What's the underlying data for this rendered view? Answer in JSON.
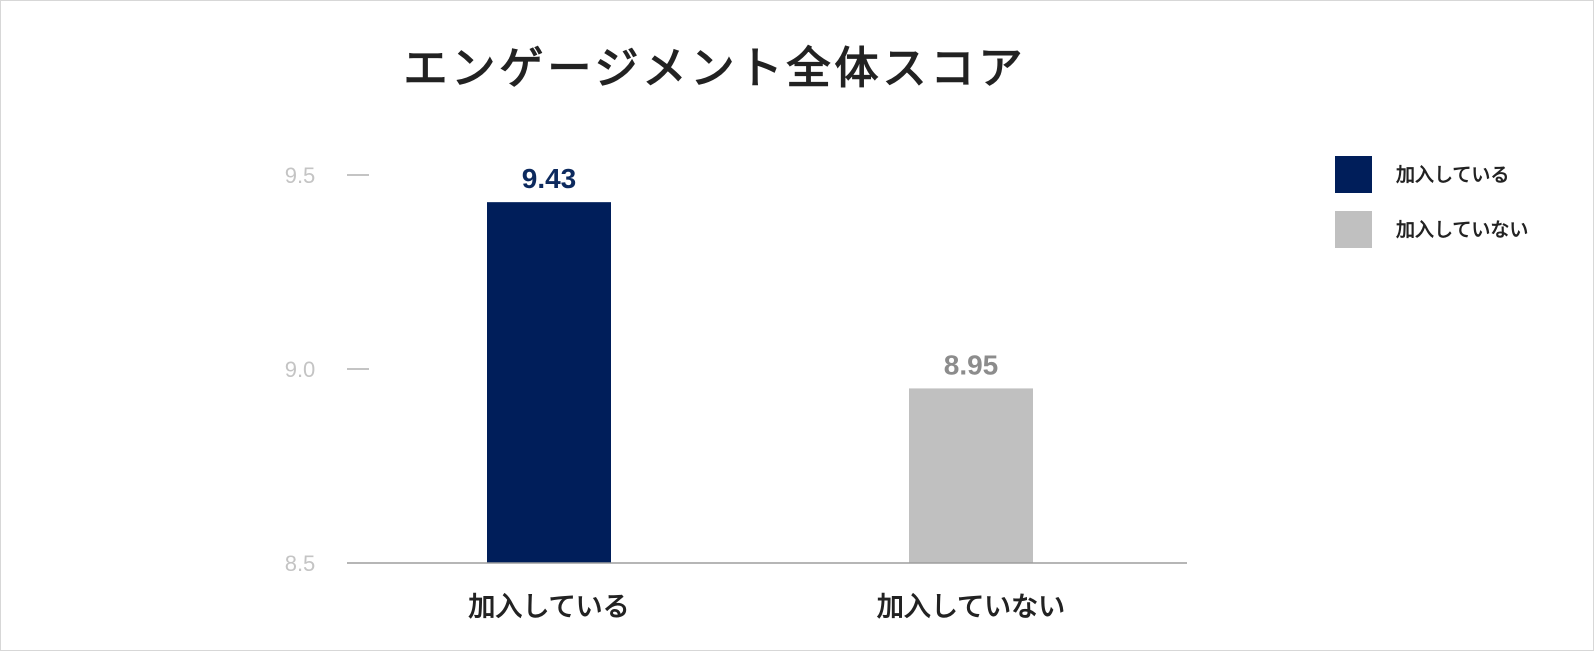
{
  "chart_data": {
    "type": "bar",
    "title": "エンゲージメント全体スコア",
    "xlabel": "",
    "ylabel": "",
    "categories": [
      "加入している",
      "加入していない"
    ],
    "values": [
      9.43,
      8.95
    ],
    "value_labels": [
      "9.43",
      "8.95"
    ],
    "colors": [
      "#001e5a",
      "#c0c0c0"
    ],
    "label_colors": [
      "#0d2a5e",
      "#8c8c8c"
    ],
    "ylim": [
      8.5,
      9.5
    ],
    "y_ticks": [
      {
        "value": 9.5,
        "label": "9.5"
      },
      {
        "value": 9.0,
        "label": "9.0"
      },
      {
        "value": 8.5,
        "label": "8.5"
      }
    ],
    "grid": false,
    "legend": {
      "placement": "top-right",
      "entries": [
        {
          "label": "加入している",
          "color": "#001e5a"
        },
        {
          "label": "加入していない",
          "color": "#c0c0c0"
        }
      ]
    }
  }
}
